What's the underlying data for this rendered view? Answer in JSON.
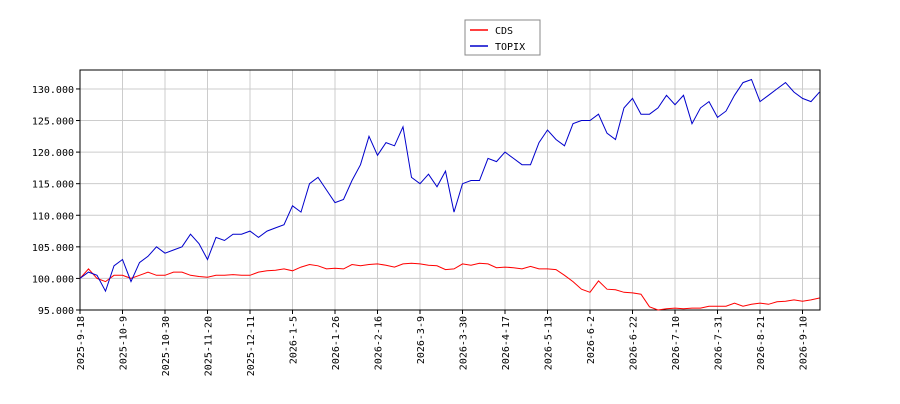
{
  "chart_data": {
    "type": "line",
    "categories": [
      "2025-9-18",
      null,
      null,
      null,
      null,
      "2025-10-9",
      null,
      null,
      null,
      null,
      "2025-10-30",
      null,
      null,
      null,
      null,
      "2025-11-20",
      null,
      null,
      null,
      null,
      "2025-12-11",
      null,
      null,
      null,
      null,
      "2026-1-5",
      null,
      null,
      null,
      null,
      "2026-1-26",
      null,
      null,
      null,
      null,
      "2026-2-16",
      null,
      null,
      null,
      null,
      "2026-3-9",
      null,
      null,
      null,
      null,
      "2026-3-30",
      null,
      null,
      null,
      null,
      "2026-4-17",
      null,
      null,
      null,
      null,
      "2026-5-13",
      null,
      null,
      null,
      null,
      "2026-6-2",
      null,
      null,
      null,
      null,
      "2026-6-22",
      null,
      null,
      null,
      null,
      "2026-7-10",
      null,
      null,
      null,
      null,
      "2026-7-31",
      null,
      null,
      null,
      null,
      "2026-8-21",
      null,
      null,
      null,
      null,
      "2026-9-10",
      null,
      null
    ],
    "series": [
      {
        "name": "CDS",
        "color": "#ff0000",
        "values": [
          100,
          101.5,
          100,
          99.5,
          100.5,
          100.5,
          100,
          100.5,
          101,
          100.5,
          100.5,
          101,
          101,
          100.5,
          100.3,
          100.2,
          100.5,
          100.5,
          100.6,
          100.5,
          100.5,
          101,
          101.2,
          101.3,
          101.5,
          101.2,
          101.8,
          102.2,
          102,
          101.5,
          101.6,
          101.5,
          102.2,
          102,
          102.2,
          102.3,
          102.1,
          101.8,
          102.3,
          102.4,
          102.3,
          102.1,
          102,
          101.4,
          101.5,
          102.3,
          102.1,
          102.4,
          102.3,
          101.7,
          101.8,
          101.7,
          101.5,
          101.9,
          101.5,
          101.5,
          101.4,
          100.5,
          99.5,
          98.3,
          97.8,
          99.6,
          98.3,
          98.2,
          97.8,
          97.7,
          97.5,
          95.5,
          95,
          95.2,
          95.3,
          95.2,
          95.3,
          95.3,
          95.6,
          95.6,
          95.6,
          96.1,
          95.6,
          95.9,
          96.1,
          95.9,
          96.3,
          96.4,
          96.6,
          96.4,
          96.6,
          96.9
        ]
      },
      {
        "name": "TOPIX",
        "color": "#0000cc",
        "values": [
          100,
          101,
          100.5,
          98,
          102,
          103,
          99.5,
          102.5,
          103.5,
          105,
          104,
          104.5,
          105,
          107,
          105.5,
          103,
          106.5,
          106,
          107,
          107,
          107.5,
          106.5,
          107.5,
          108,
          108.5,
          111.5,
          110.5,
          115,
          116,
          114,
          112,
          112.5,
          115.5,
          118,
          122.5,
          119.5,
          121.5,
          121,
          124,
          116,
          115,
          116.5,
          114.5,
          117,
          110.5,
          115,
          115.5,
          115.5,
          119,
          118.5,
          120,
          119,
          118,
          118,
          121.5,
          123.5,
          122,
          121,
          124.5,
          125,
          125,
          126,
          123,
          122,
          127,
          128.5,
          126,
          126,
          127,
          129,
          127.5,
          129,
          124.5,
          127,
          128,
          125.5,
          126.5,
          129,
          131,
          131.5,
          128,
          129,
          130,
          131,
          129.5,
          128.5,
          128,
          129.5
        ]
      }
    ],
    "ylim": [
      95,
      133
    ],
    "yticks": [
      {
        "value": 95,
        "label": "95.000"
      },
      {
        "value": 100,
        "label": "100.000"
      },
      {
        "value": 105,
        "label": "105.000"
      },
      {
        "value": 110,
        "label": "110.000"
      },
      {
        "value": 115,
        "label": "115.000"
      },
      {
        "value": 120,
        "label": "120.000"
      },
      {
        "value": 125,
        "label": "125.000"
      },
      {
        "value": 130,
        "label": "130.000"
      }
    ],
    "grid": true
  }
}
